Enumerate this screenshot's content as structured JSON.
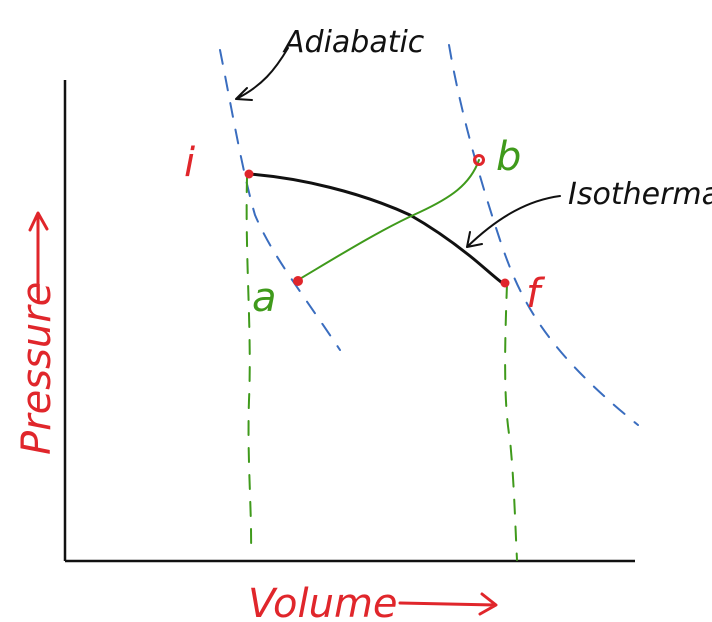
{
  "diagram": {
    "axes": {
      "x_label": "Volume",
      "y_label": "Pressure"
    },
    "annotations": {
      "adiabatic": "Adiabatic",
      "isothermal": "Isothermal"
    },
    "points": {
      "i": "i",
      "f": "f",
      "a": "a",
      "b": "b"
    },
    "colors": {
      "red": "#e0262b",
      "green": "#3f9a1b",
      "blue": "#3a6dbf",
      "black": "#111111"
    }
  }
}
